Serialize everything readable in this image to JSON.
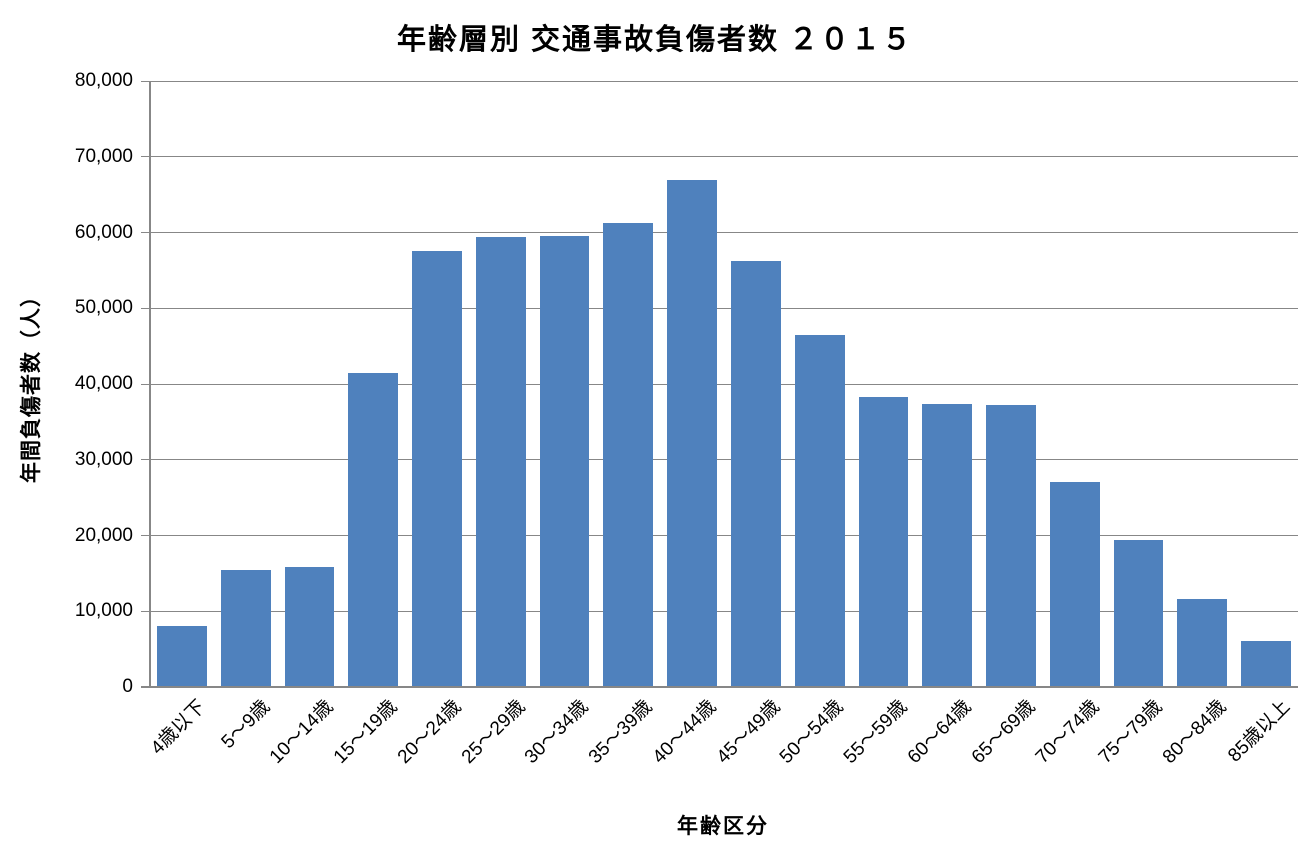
{
  "chart": {
    "title": "年齢層別 交通事故負傷者数 ２０１５"
  },
  "chart_data": {
    "type": "bar",
    "title": "年齢層別 交通事故負傷者数 ２０１５",
    "xlabel": "年齢区分",
    "ylabel": "年間負傷者数（人）",
    "categories": [
      "4歳以下",
      "5～9歳",
      "10～14歳",
      "15～19歳",
      "20～24歳",
      "25～29歳",
      "30～34歳",
      "35～39歳",
      "40～44歳",
      "45～49歳",
      "50～54歳",
      "55～59歳",
      "60～64歳",
      "65～69歳",
      "70～74歳",
      "75～79歳",
      "80～84歳",
      "85歳以上"
    ],
    "values": [
      8100,
      15500,
      15900,
      41500,
      57600,
      59400,
      59500,
      61300,
      66900,
      56300,
      46500,
      38300,
      37300,
      37200,
      27000,
      19400,
      11600,
      6100
    ],
    "ylim": [
      0,
      80000
    ],
    "ytick_step": 10000,
    "ytick_labels": [
      "0",
      "10,000",
      "20,000",
      "30,000",
      "40,000",
      "50,000",
      "60,000",
      "70,000",
      "80,000"
    ],
    "grid": true,
    "legend": false,
    "bar_color": "#4F81BD",
    "gridline_color": "#878787",
    "axis_color": "#878787",
    "text_color": "#000000",
    "background_color": "#FFFFFF"
  }
}
